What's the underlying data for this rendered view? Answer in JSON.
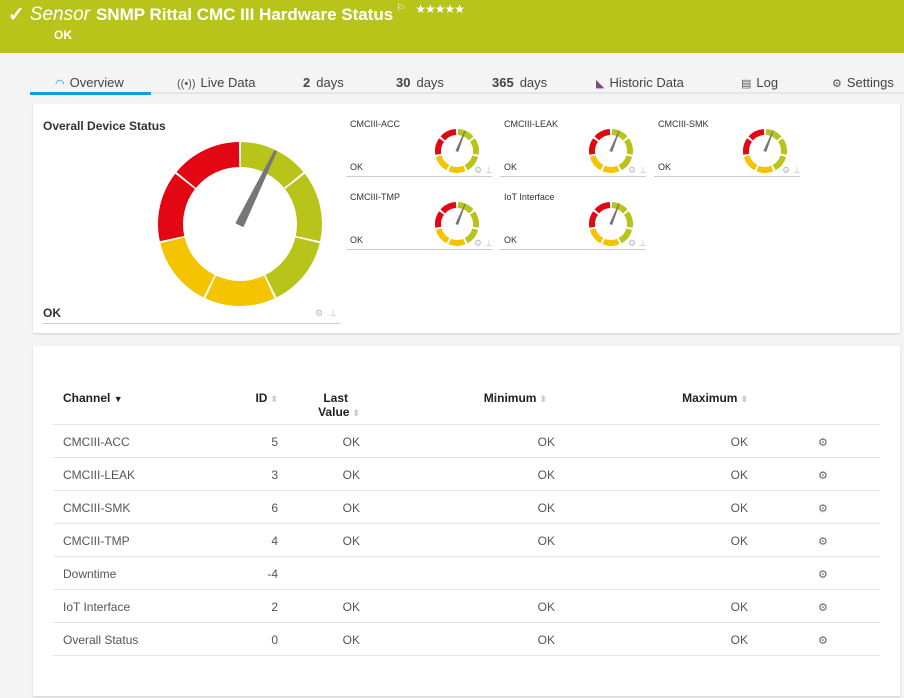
{
  "header": {
    "check_icon": "checkmark-icon",
    "prefix": "Sensor",
    "title": "SNMP Rittal CMC III Hardware Status",
    "flag_icon": "flag-icon",
    "priority_stars": 5,
    "stars_text": "★★★★★",
    "status": "OK",
    "color": "#b9c41b"
  },
  "tabs": [
    {
      "icon": "gauge-icon",
      "label": "Overview",
      "active": true
    },
    {
      "icon": "live-data-icon",
      "label": "Live Data"
    },
    {
      "num": "2",
      "label": "days"
    },
    {
      "num": "30",
      "label": "days"
    },
    {
      "num": "365",
      "label": "days"
    },
    {
      "icon": "area-chart-icon",
      "label": "Historic Data"
    },
    {
      "icon": "log-icon",
      "label": "Log"
    },
    {
      "icon": "gear-icon",
      "label": "Settings"
    }
  ],
  "gauge_colors": {
    "red": "#e30613",
    "yellow": "#f5c400",
    "green": "#b9c41b",
    "needle": "#777777"
  },
  "overall": {
    "title": "Overall Device Status",
    "value": "OK"
  },
  "gauges": [
    {
      "label": "CMCIII-ACC",
      "value": "OK"
    },
    {
      "label": "CMCIII-LEAK",
      "value": "OK"
    },
    {
      "label": "CMCIII-SMK",
      "value": "OK"
    },
    {
      "label": "CMCIII-TMP",
      "value": "OK"
    },
    {
      "label": "IoT Interface",
      "value": "OK"
    }
  ],
  "table": {
    "headers": {
      "channel": "Channel",
      "id": "ID",
      "last1": "Last",
      "last2": "Value",
      "min": "Minimum",
      "max": "Maximum"
    },
    "rows": [
      {
        "channel": "CMCIII-ACC",
        "id": "5",
        "last": "OK",
        "min": "OK",
        "max": "OK"
      },
      {
        "channel": "CMCIII-LEAK",
        "id": "3",
        "last": "OK",
        "min": "OK",
        "max": "OK"
      },
      {
        "channel": "CMCIII-SMK",
        "id": "6",
        "last": "OK",
        "min": "OK",
        "max": "OK"
      },
      {
        "channel": "CMCIII-TMP",
        "id": "4",
        "last": "OK",
        "min": "OK",
        "max": "OK"
      },
      {
        "channel": "Downtime",
        "id": "-4",
        "last": "",
        "min": "",
        "max": ""
      },
      {
        "channel": "IoT Interface",
        "id": "2",
        "last": "OK",
        "min": "OK",
        "max": "OK"
      },
      {
        "channel": "Overall Status",
        "id": "0",
        "last": "OK",
        "min": "OK",
        "max": "OK"
      }
    ]
  }
}
